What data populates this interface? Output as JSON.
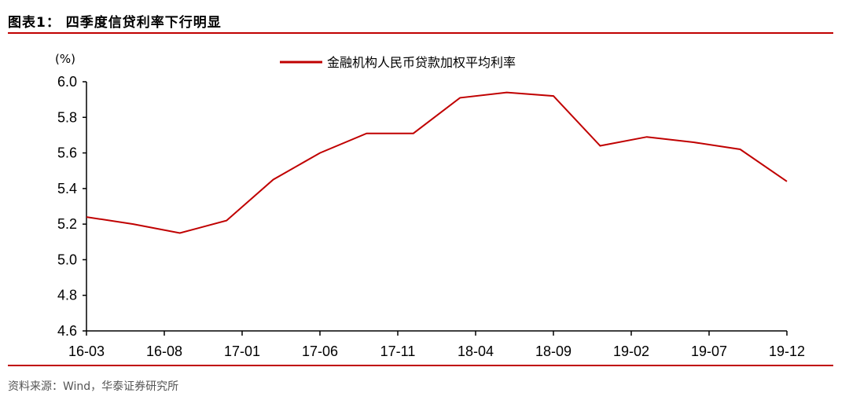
{
  "header": {
    "title": "图表1： 四季度信贷利率下行明显"
  },
  "footer": {
    "source": "资料来源：Wind，华泰证券研究所"
  },
  "colors": {
    "accent": "#c00000",
    "series": "#c00000"
  },
  "chart_data": {
    "type": "line",
    "title": "图表1： 四季度信贷利率下行明显",
    "ylabel": "(%)",
    "xlabel": "",
    "ylim": [
      4.6,
      6.0
    ],
    "yticks": [
      "6.0",
      "5.8",
      "5.6",
      "5.4",
      "5.2",
      "5.0",
      "4.8",
      "4.6"
    ],
    "xticks": [
      "16-03",
      "16-08",
      "17-01",
      "17-06",
      "17-11",
      "18-04",
      "18-09",
      "19-02",
      "19-07",
      "19-12"
    ],
    "x": [
      "16-03",
      "16-06",
      "16-09",
      "16-12",
      "17-03",
      "17-06",
      "17-09",
      "17-12",
      "18-03",
      "18-06",
      "18-09",
      "18-12",
      "19-03",
      "19-06",
      "19-09",
      "19-12"
    ],
    "series": [
      {
        "name": "金融机构人民币贷款加权平均利率",
        "values": [
          5.24,
          5.2,
          5.15,
          5.22,
          5.45,
          5.6,
          5.71,
          5.71,
          5.91,
          5.94,
          5.92,
          5.64,
          5.69,
          5.66,
          5.62,
          5.44
        ]
      }
    ],
    "grid": false,
    "legend": "top-center"
  }
}
